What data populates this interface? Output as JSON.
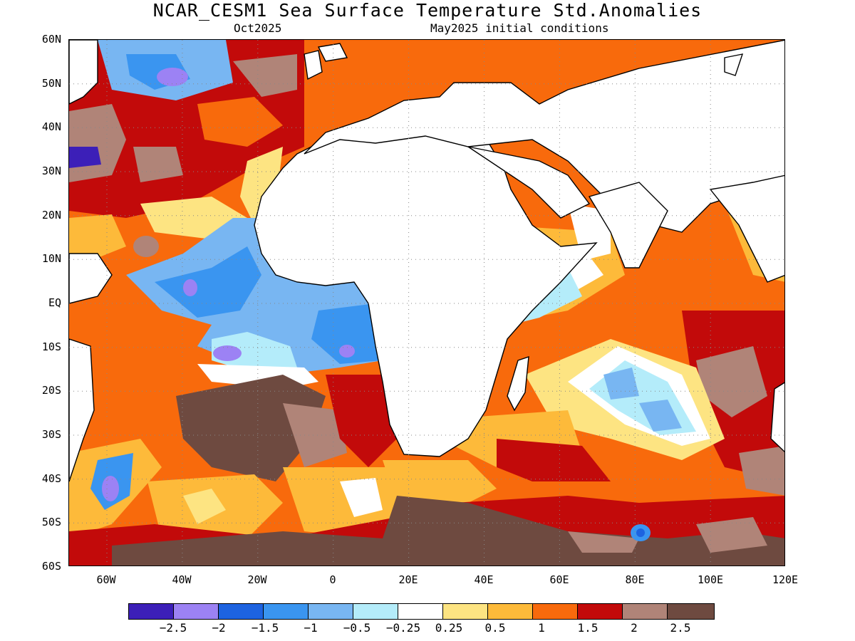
{
  "header": {
    "title": "NCAR_CESM1 Sea Surface Temperature Std.Anomalies",
    "valid_month": "Oct2025",
    "init_conditions": "May2025 initial conditions"
  },
  "map": {
    "lat_labels": [
      "60N",
      "50N",
      "40N",
      "30N",
      "20N",
      "10N",
      "EQ",
      "10S",
      "20S",
      "30S",
      "40S",
      "50S",
      "60S"
    ],
    "lon_labels": [
      "60W",
      "40W",
      "20W",
      "0",
      "20E",
      "40E",
      "60E",
      "80E",
      "100E",
      "120E"
    ],
    "lon_extent": [
      -70,
      120
    ],
    "lat_extent": [
      -60,
      60
    ],
    "grid": "dotted",
    "land_color": "#ffffff"
  },
  "colorbar": {
    "colors": [
      "#3c1fb8",
      "#9c82f4",
      "#1d63e0",
      "#3a95f0",
      "#78b6f2",
      "#b4ecfa",
      "#ffffff",
      "#fde482",
      "#fdba3a",
      "#f86a0c",
      "#c20a0a",
      "#b08478",
      "#6e4a40"
    ],
    "labels": [
      "−2.5",
      "−2",
      "−1.5",
      "−1",
      "−0.5",
      "−0.25",
      "0.25",
      "0.5",
      "1",
      "1.5",
      "2",
      "2.5"
    ]
  }
}
